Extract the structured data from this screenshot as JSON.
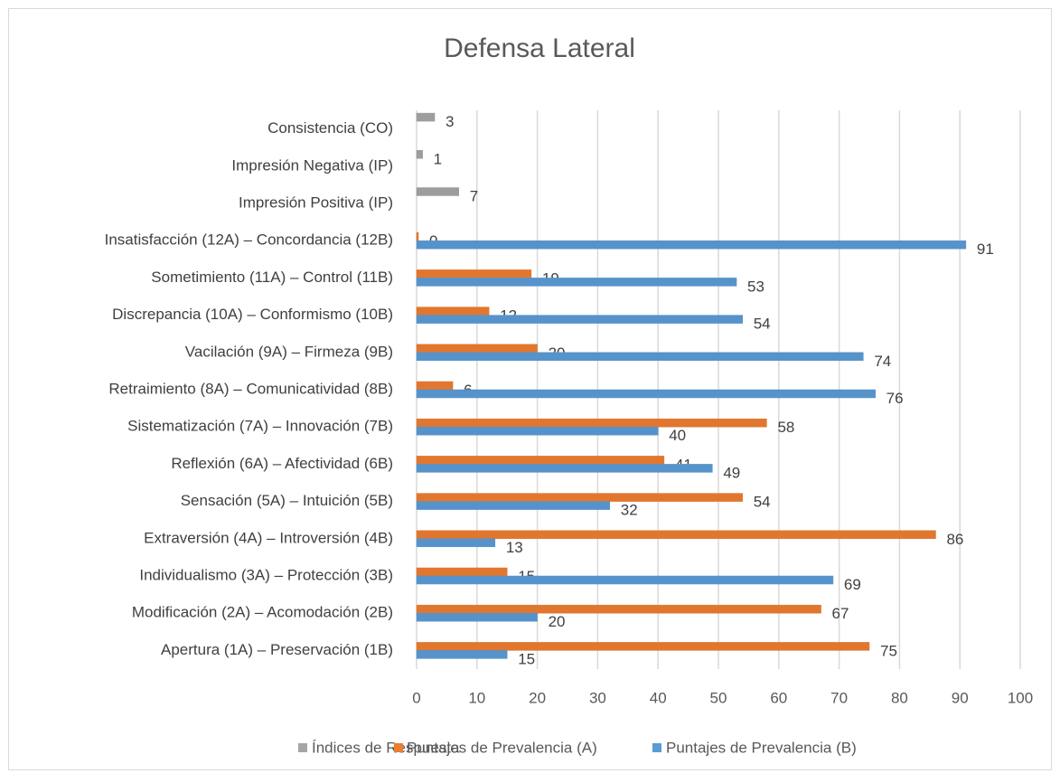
{
  "chart_data": {
    "type": "barh",
    "title": "Defensa Lateral",
    "categories": [
      "Apertura (1A) – Preservación (1B)",
      "Modificación (2A) – Acomodación (2B)",
      "Individualismo (3A) – Protección (3B)",
      "Extraversión (4A) – Introversión (4B)",
      "Sensación (5A) – Intuición (5B)",
      "Reflexión (6A) – Afectividad (6B)",
      "Sistematización (7A) – Innovación (7B)",
      "Retraimiento (8A) – Comunicatividad (8B)",
      "Vacilación (9A) – Firmeza (9B)",
      "Discrepancia (10A) – Conformismo (10B)",
      "Sometimiento  (11A) – Control (11B)",
      "Insatisfacción (12A) – Concordancia (12B)",
      "Impresión Positiva (IP)",
      "Impresión Negativa (IP)",
      "Consistencia (CO)"
    ],
    "series": [
      {
        "name": "Índices de Respuesta",
        "color": "#a5a5a5",
        "values": [
          null,
          null,
          null,
          null,
          null,
          null,
          null,
          null,
          null,
          null,
          null,
          null,
          7,
          1,
          3
        ]
      },
      {
        "name": "Puntajes de Prevalencia (A)",
        "color": "#ed7d31",
        "values": [
          75,
          67,
          15,
          86,
          54,
          41,
          58,
          6,
          20,
          12,
          19,
          0,
          null,
          null,
          null
        ]
      },
      {
        "name": "Puntajes de Prevalencia (B)",
        "color": "#5b9bd5",
        "values": [
          15,
          20,
          69,
          13,
          32,
          49,
          40,
          76,
          74,
          54,
          53,
          91,
          null,
          null,
          null
        ]
      }
    ],
    "xlim": [
      0,
      100
    ],
    "xticks": [
      0,
      10,
      20,
      30,
      40,
      50,
      60,
      70,
      80,
      90,
      100
    ],
    "grid": true,
    "legend": "bottom"
  }
}
